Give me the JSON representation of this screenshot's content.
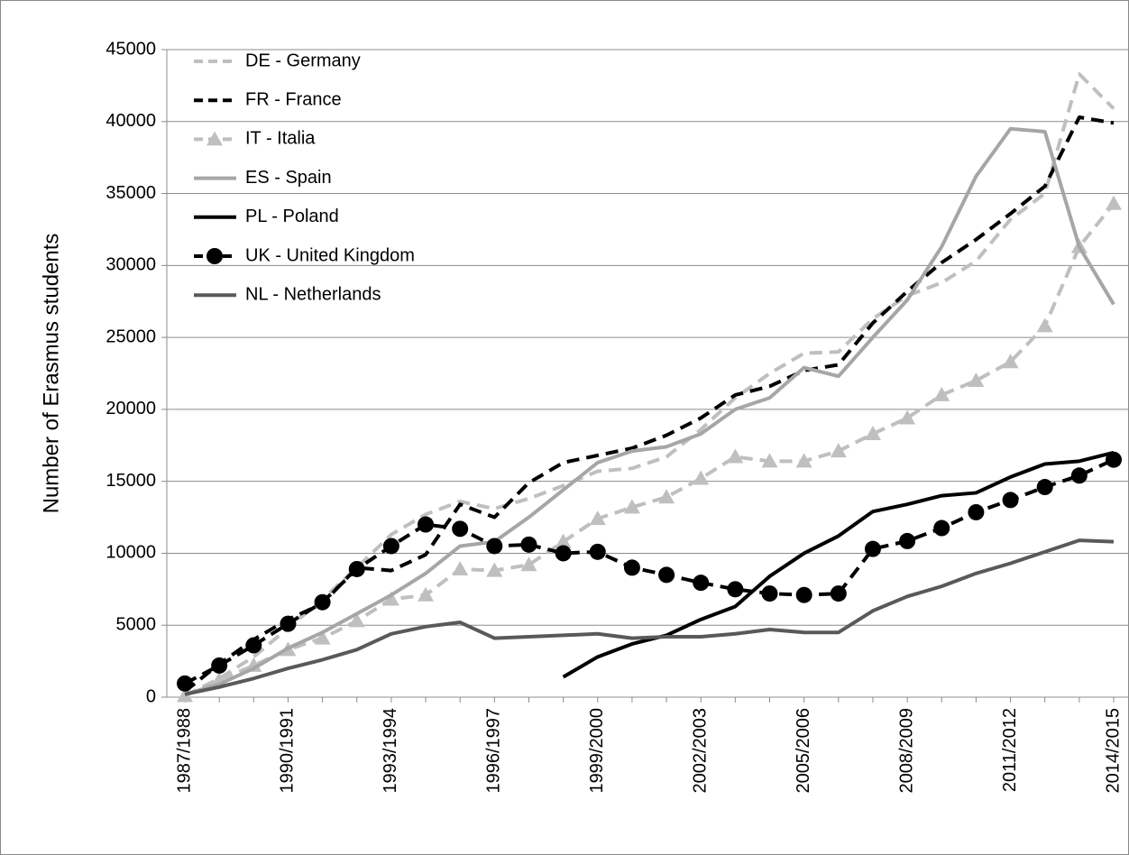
{
  "chart_data": {
    "type": "line",
    "y_label": "Number of Erasmus students",
    "categories": [
      "1987/1988",
      null,
      null,
      "1990/1991",
      null,
      null,
      "1993/1994",
      null,
      null,
      "1996/1997",
      null,
      null,
      "1999/2000",
      null,
      null,
      "2002/2003",
      null,
      null,
      "2005/2006",
      null,
      null,
      "2008/2009",
      null,
      null,
      "2011/2012",
      null,
      null,
      "2014/2015"
    ],
    "ylim": [
      0,
      45000
    ],
    "yticks": [
      0,
      5000,
      10000,
      15000,
      20000,
      25000,
      30000,
      35000,
      40000,
      45000
    ],
    "grid": true,
    "legend": "top-left",
    "series": [
      {
        "name": "DE - Germany",
        "color": "#bfbfbf",
        "dash": true,
        "marker": "none",
        "values": [
          100,
          1300,
          2800,
          4800,
          6800,
          9000,
          11300,
          12700,
          13600,
          13100,
          13800,
          14700,
          15700,
          15900,
          16700,
          18600,
          20800,
          22500,
          23900,
          24000,
          26300,
          27900,
          28800,
          30300,
          33200,
          35000,
          43300,
          40900
        ]
      },
      {
        "name": "FR - France",
        "color": "#000000",
        "dash": true,
        "marker": "none",
        "values": [
          400,
          2300,
          4000,
          5400,
          6500,
          9000,
          8800,
          9900,
          13400,
          12500,
          14900,
          16300,
          16800,
          17300,
          18200,
          19400,
          21000,
          21600,
          22700,
          23100,
          26000,
          28200,
          30200,
          31800,
          33600,
          35500,
          40300,
          39900
        ]
      },
      {
        "name": "IT - Italia",
        "color": "#bfbfbf",
        "dash": true,
        "marker": "triangle",
        "values": [
          100,
          1200,
          2200,
          3300,
          4100,
          5300,
          6800,
          7100,
          8900,
          8800,
          9200,
          10800,
          12400,
          13200,
          13900,
          15200,
          16700,
          16400,
          16400,
          17100,
          18300,
          19400,
          21000,
          22000,
          23300,
          25800,
          31300,
          34300
        ]
      },
      {
        "name": "ES - Spain",
        "color": "#a6a6a6",
        "dash": false,
        "marker": "none",
        "values": [
          200,
          900,
          2000,
          3400,
          4500,
          5800,
          7100,
          8600,
          10500,
          10800,
          12500,
          14400,
          16300,
          17100,
          17400,
          18300,
          20000,
          20800,
          22900,
          22300,
          25000,
          27600,
          31300,
          36200,
          39500,
          39300,
          31300,
          27300
        ]
      },
      {
        "name": "PL - Poland",
        "color": "#000000",
        "dash": false,
        "marker": "none",
        "values": [
          null,
          null,
          null,
          null,
          null,
          null,
          null,
          null,
          null,
          null,
          null,
          1400,
          2800,
          3700,
          4300,
          5400,
          6300,
          8400,
          10000,
          11200,
          12900,
          13400,
          14000,
          14200,
          15300,
          16200,
          16400,
          17000
        ]
      },
      {
        "name": "UK - United Kingdom",
        "color": "#000000",
        "dash": true,
        "marker": "circle",
        "values": [
          950,
          2200,
          3600,
          5100,
          6600,
          8900,
          10500,
          12000,
          11700,
          10500,
          10600,
          10000,
          10100,
          9000,
          8500,
          7950,
          7500,
          7200,
          7100,
          7200,
          10300,
          10850,
          11750,
          12850,
          13700,
          14600,
          15400,
          16500
        ]
      },
      {
        "name": "NL - Netherlands",
        "color": "#595959",
        "dash": false,
        "marker": "none",
        "values": [
          200,
          700,
          1300,
          2000,
          2600,
          3300,
          4400,
          4900,
          5200,
          4100,
          4200,
          4300,
          4400,
          4100,
          4200,
          4200,
          4400,
          4700,
          4500,
          4500,
          6000,
          7000,
          7700,
          8600,
          9300,
          10100,
          10900,
          10800
        ]
      }
    ]
  }
}
